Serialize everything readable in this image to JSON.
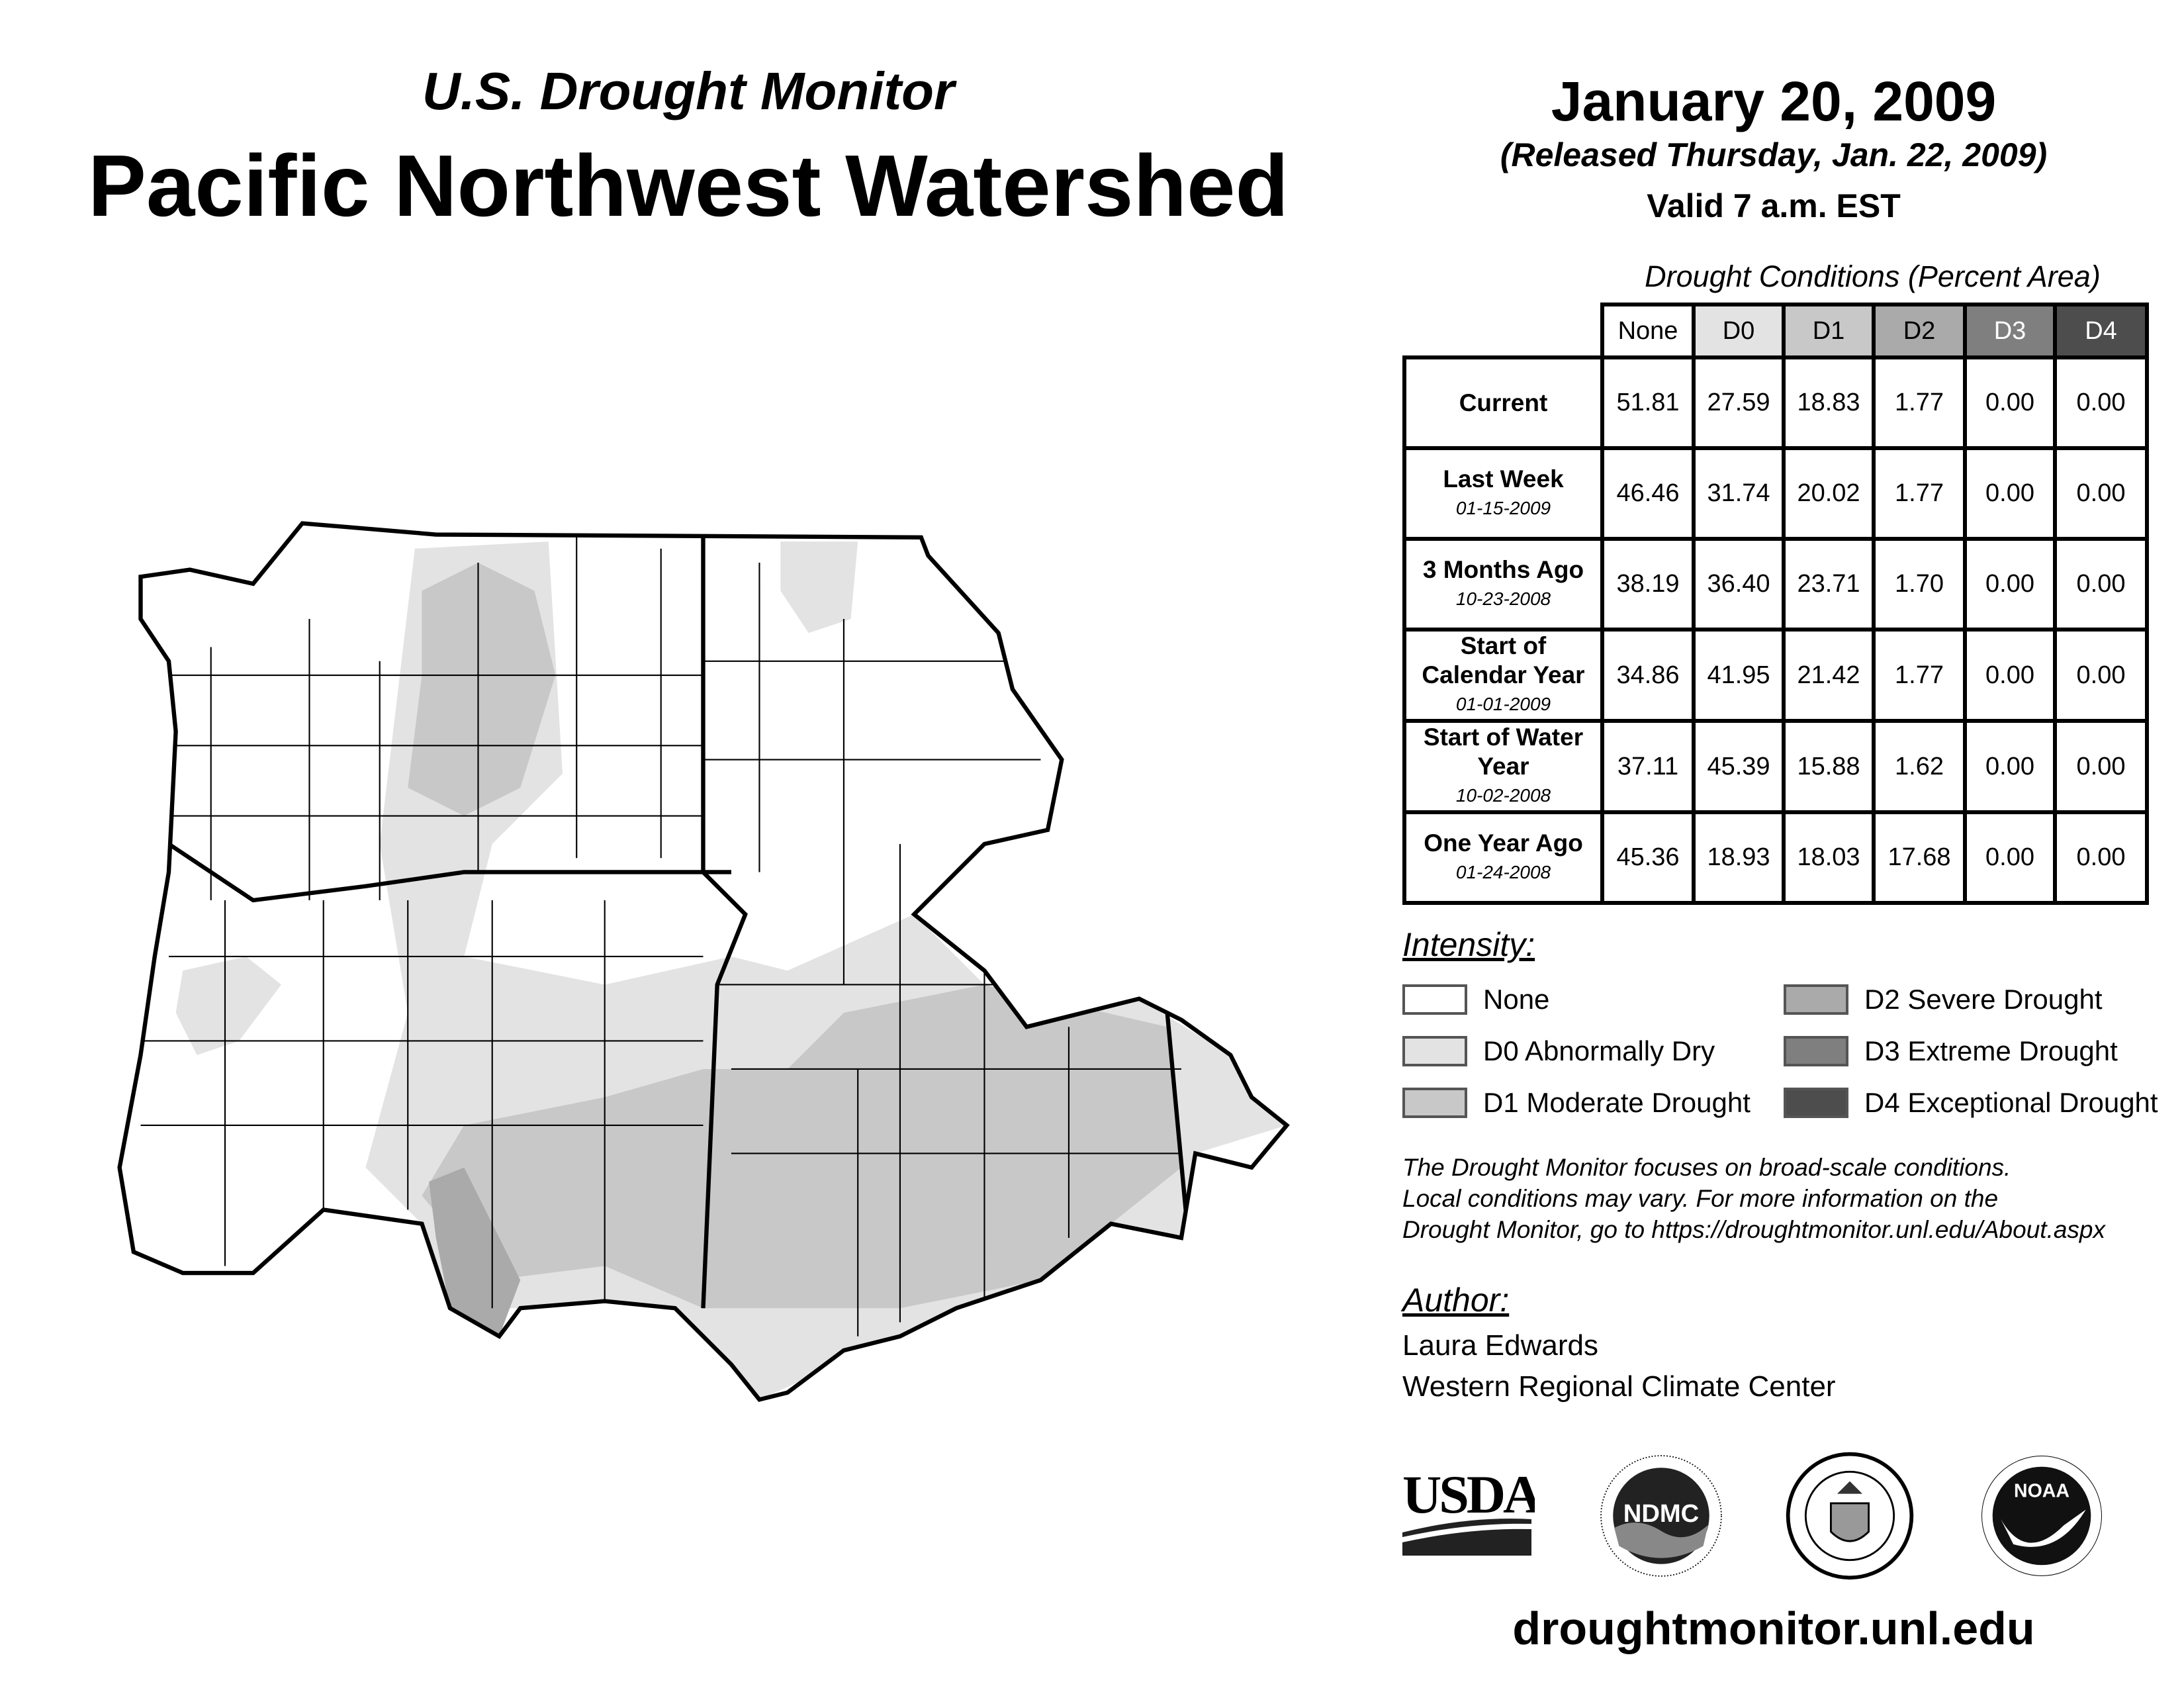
{
  "header": {
    "subtitle": "U.S. Drought Monitor",
    "title": "Pacific Northwest Watershed",
    "date": "January 20, 2009",
    "released": "(Released Thursday, Jan. 22, 2009)",
    "valid": "Valid 7 a.m. EST"
  },
  "table": {
    "caption": "Drought Conditions (Percent Area)",
    "columns": [
      "None",
      "D0",
      "D1",
      "D2",
      "D3",
      "D4"
    ],
    "column_colors": [
      "#ffffff",
      "#e3e3e3",
      "#c8c8c8",
      "#aaaaaa",
      "#7f7f7f",
      "#4d4d4d"
    ],
    "rows": [
      {
        "label": "Current",
        "date": "",
        "values": [
          "51.81",
          "27.59",
          "18.83",
          "1.77",
          "0.00",
          "0.00"
        ]
      },
      {
        "label": "Last Week",
        "date": "01-15-2009",
        "values": [
          "46.46",
          "31.74",
          "20.02",
          "1.77",
          "0.00",
          "0.00"
        ]
      },
      {
        "label": "3 Months Ago",
        "date": "10-23-2008",
        "values": [
          "38.19",
          "36.40",
          "23.71",
          "1.70",
          "0.00",
          "0.00"
        ]
      },
      {
        "label": "Start of Calendar Year",
        "date": "01-01-2009",
        "values": [
          "34.86",
          "41.95",
          "21.42",
          "1.77",
          "0.00",
          "0.00"
        ]
      },
      {
        "label": "Start of Water Year",
        "date": "10-02-2008",
        "values": [
          "37.11",
          "45.39",
          "15.88",
          "1.62",
          "0.00",
          "0.00"
        ]
      },
      {
        "label": "One Year Ago",
        "date": "01-24-2008",
        "values": [
          "45.36",
          "18.93",
          "18.03",
          "17.68",
          "0.00",
          "0.00"
        ]
      }
    ]
  },
  "legend": {
    "heading": "Intensity:",
    "items": [
      {
        "label": "None",
        "color": "#ffffff"
      },
      {
        "label": "D0 Abnormally Dry",
        "color": "#e3e3e3"
      },
      {
        "label": "D1 Moderate Drought",
        "color": "#c8c8c8"
      },
      {
        "label": "D2 Severe Drought",
        "color": "#aaaaaa"
      },
      {
        "label": "D3 Extreme Drought",
        "color": "#7f7f7f"
      },
      {
        "label": "D4 Exceptional Drought",
        "color": "#4d4d4d"
      }
    ]
  },
  "disclaimer": {
    "line1": "The Drought Monitor focuses on broad-scale conditions.",
    "line2": "Local conditions may vary. For more information on the",
    "line3": "Drought Monitor, go to https://droughtmonitor.unl.edu/About.aspx"
  },
  "author": {
    "heading": "Author:",
    "name": "Laura Edwards",
    "org": "Western Regional Climate Center"
  },
  "logos": {
    "usda": "USDA",
    "ndmc": "NDMC",
    "ndmc_ring": "NATIONAL DROUGHT MITIGATION CENTER · UNIVERSITY OF NEBRASKA",
    "commerce_ring": "DEPARTMENT OF COMMERCE · UNITED STATES OF AMERICA",
    "noaa": "NOAA",
    "noaa_ring": "NATIONAL OCEANIC AND ATMOSPHERIC ADMINISTRATION · U.S. DEPARTMENT OF COMMERCE"
  },
  "footer": {
    "url": "droughtmonitor.unl.edu"
  }
}
